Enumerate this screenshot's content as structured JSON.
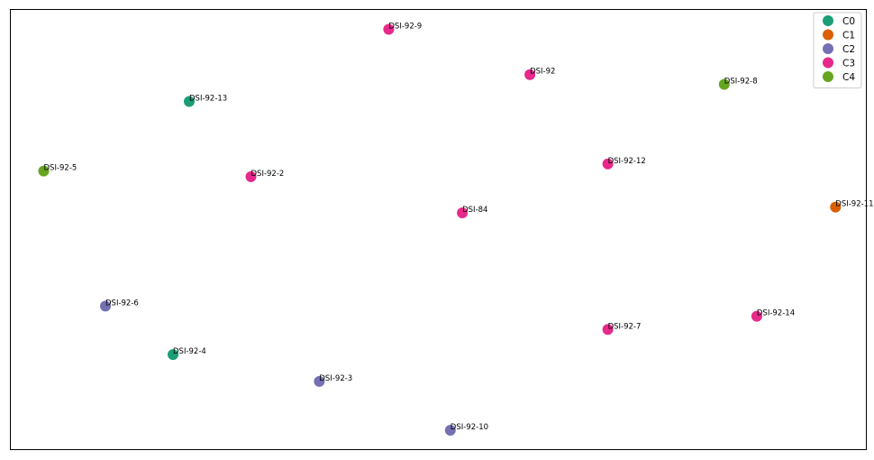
{
  "chart_data": {
    "type": "scatter",
    "title": "",
    "xlabel": "",
    "ylabel": "",
    "axes_ticks": false,
    "grid": false,
    "legend_position": "top-right",
    "xlim": [
      0,
      100
    ],
    "ylim": [
      0,
      100
    ],
    "series": [
      {
        "name": "C0",
        "color": "#1b9e77",
        "points": [
          {
            "label": "DSI-92-13",
            "x": 20.9,
            "y": 79.1
          },
          {
            "label": "DSI-92-4",
            "x": 19.0,
            "y": 21.6
          }
        ]
      },
      {
        "name": "C1",
        "color": "#d95f02",
        "points": [
          {
            "label": "DSI-92-11",
            "x": 96.4,
            "y": 55.1
          }
        ]
      },
      {
        "name": "C2",
        "color": "#7570b3",
        "points": [
          {
            "label": "DSI-92-6",
            "x": 11.1,
            "y": 32.6
          },
          {
            "label": "DSI-92-3",
            "x": 36.1,
            "y": 15.5
          },
          {
            "label": "DSI-92-10",
            "x": 51.4,
            "y": 4.4
          }
        ]
      },
      {
        "name": "C3",
        "color": "#e7298a",
        "points": [
          {
            "label": "DSI-92-9",
            "x": 44.2,
            "y": 95.5
          },
          {
            "label": "DSI-92",
            "x": 60.7,
            "y": 85.2
          },
          {
            "label": "DSI-92-2",
            "x": 28.1,
            "y": 62.0
          },
          {
            "label": "DSI-92-12",
            "x": 69.8,
            "y": 64.9
          },
          {
            "label": "DSI-84",
            "x": 52.8,
            "y": 53.8
          },
          {
            "label": "DSI-92-7",
            "x": 69.8,
            "y": 27.3
          },
          {
            "label": "DSI-92-14",
            "x": 87.2,
            "y": 30.3
          }
        ]
      },
      {
        "name": "C4",
        "color": "#66a61e",
        "points": [
          {
            "label": "DSI-92-8",
            "x": 83.4,
            "y": 83.0
          },
          {
            "label": "DSI-92-5",
            "x": 3.9,
            "y": 63.3
          }
        ]
      }
    ]
  }
}
